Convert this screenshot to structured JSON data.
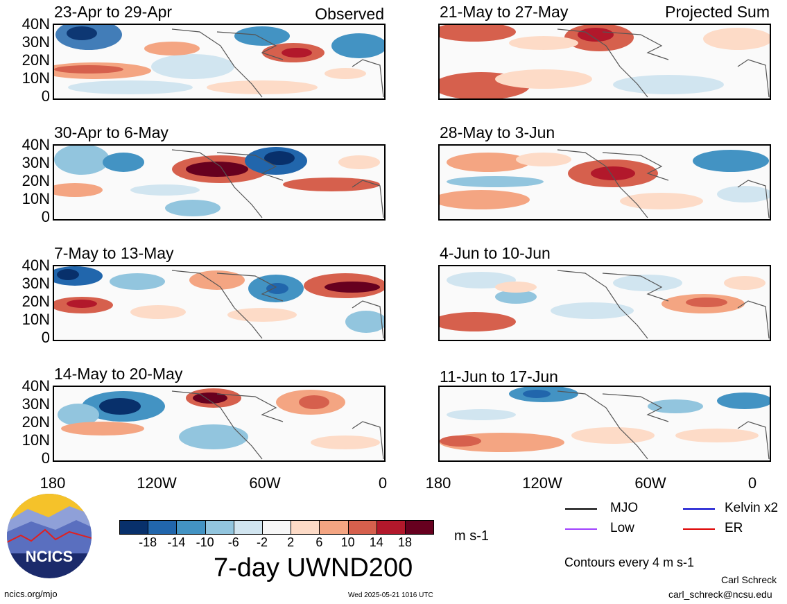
{
  "panels": [
    {
      "title": "23-Apr to 29-Apr",
      "label": "Observed"
    },
    {
      "title": "30-Apr to 6-May",
      "label": ""
    },
    {
      "title": "7-May to 13-May",
      "label": ""
    },
    {
      "title": "14-May to 20-May",
      "label": ""
    },
    {
      "title": "21-May to 27-May",
      "label": "Projected Sum"
    },
    {
      "title": "28-May to 3-Jun",
      "label": ""
    },
    {
      "title": "4-Jun to 10-Jun",
      "label": ""
    },
    {
      "title": "11-Jun to 17-Jun",
      "label": ""
    }
  ],
  "lat_labels": [
    "40N",
    "30N",
    "20N",
    "10N",
    "0"
  ],
  "lon_labels": [
    "180",
    "120W",
    "60W",
    "0"
  ],
  "colorbar": {
    "colors": [
      "#08306b",
      "#2166ac",
      "#4393c3",
      "#92c5de",
      "#d1e5f0",
      "#f7f7f7",
      "#fddbc7",
      "#f4a582",
      "#d6604d",
      "#b2182b",
      "#67001f"
    ],
    "ticks": [
      "-18",
      "-14",
      "-10",
      "-6",
      "-2",
      "2",
      "6",
      "10",
      "14",
      "18"
    ],
    "units": "m s-1"
  },
  "title": "7-day UWND200",
  "legend": {
    "items": [
      {
        "label": "MJO",
        "color": "#000000"
      },
      {
        "label": "Kelvin x2",
        "color": "#0000cc"
      },
      {
        "label": "Low",
        "color": "#a040ff"
      },
      {
        "label": "ER",
        "color": "#dd0000"
      }
    ],
    "contours": "Contours every 4 m s-1"
  },
  "logo": {
    "text": "NCICS"
  },
  "footer": {
    "url": "ncics.org/mjo",
    "timestamp": "Wed 2025-05-21 1016 UTC",
    "author": "Carl Schreck",
    "email": "carl_schreck@ncsu.edu"
  }
}
